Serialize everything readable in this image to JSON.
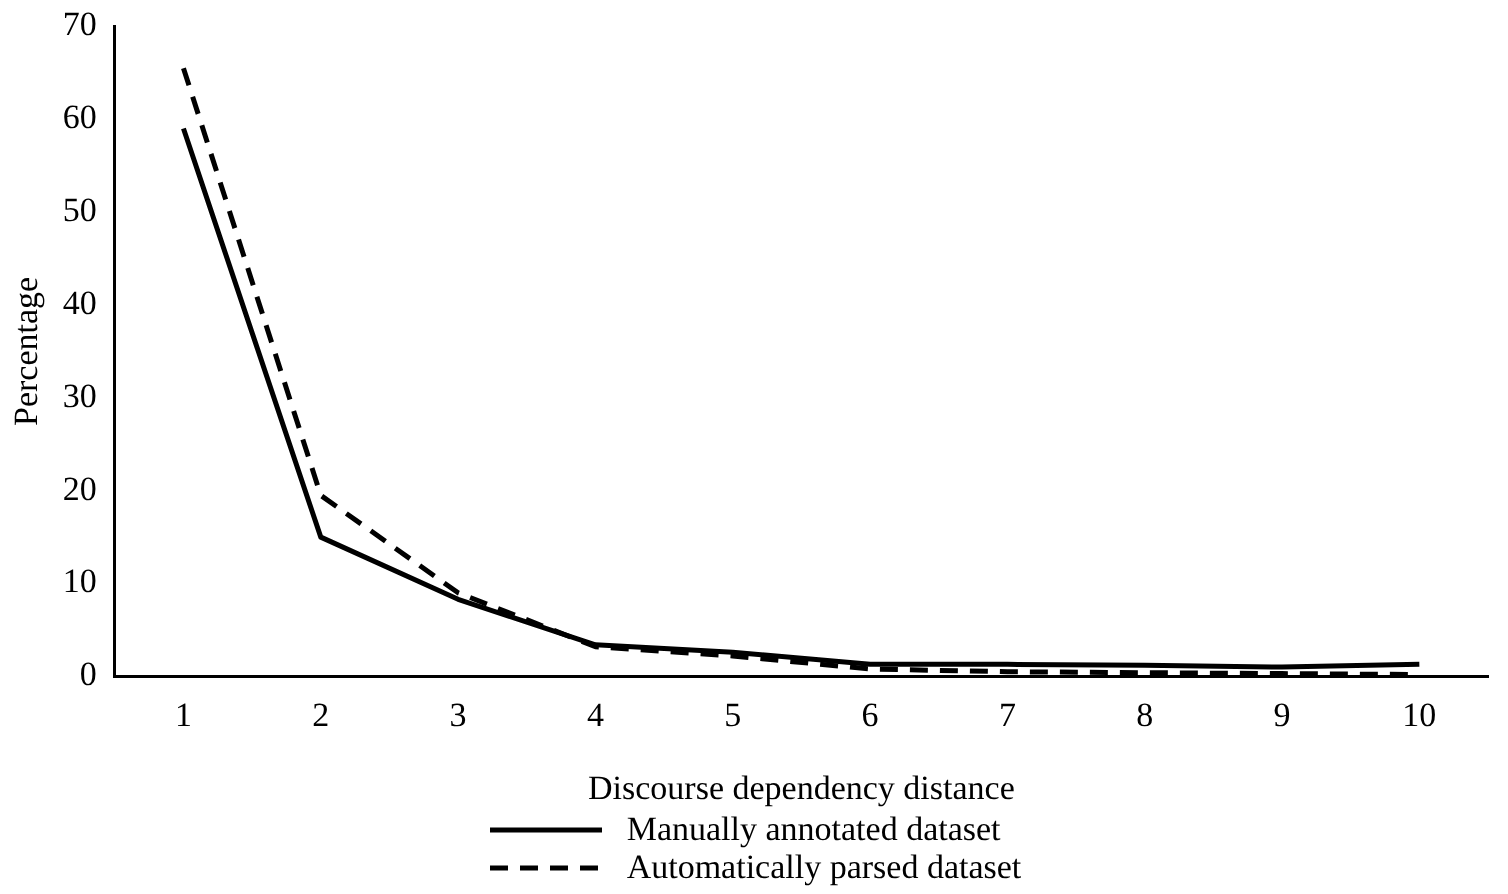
{
  "chart_data": {
    "type": "line",
    "xlabel": "Discourse dependency distance",
    "ylabel": "Percentage",
    "categories": [
      "1",
      "2",
      "3",
      "4",
      "5",
      "6",
      "7",
      "8",
      "9",
      "10"
    ],
    "series": [
      {
        "name": "Manually annotated dataset",
        "color": "#000000",
        "line_style": "solid",
        "values": [
          59,
          15,
          8.3,
          3.4,
          2.6,
          1.3,
          1.3,
          1.2,
          1.0,
          1.3
        ]
      },
      {
        "name": "Automatically parsed dataset",
        "color": "#000000",
        "line_style": "dashed",
        "values": [
          65.5,
          19.5,
          9,
          3.2,
          2.2,
          0.8,
          0.5,
          0.4,
          0.3,
          0.2
        ]
      }
    ],
    "ylim": [
      0,
      70
    ],
    "yticks": [
      0,
      10,
      20,
      30,
      40,
      50,
      60,
      70
    ],
    "grid": false,
    "legend": "bottom",
    "marker": "none"
  }
}
